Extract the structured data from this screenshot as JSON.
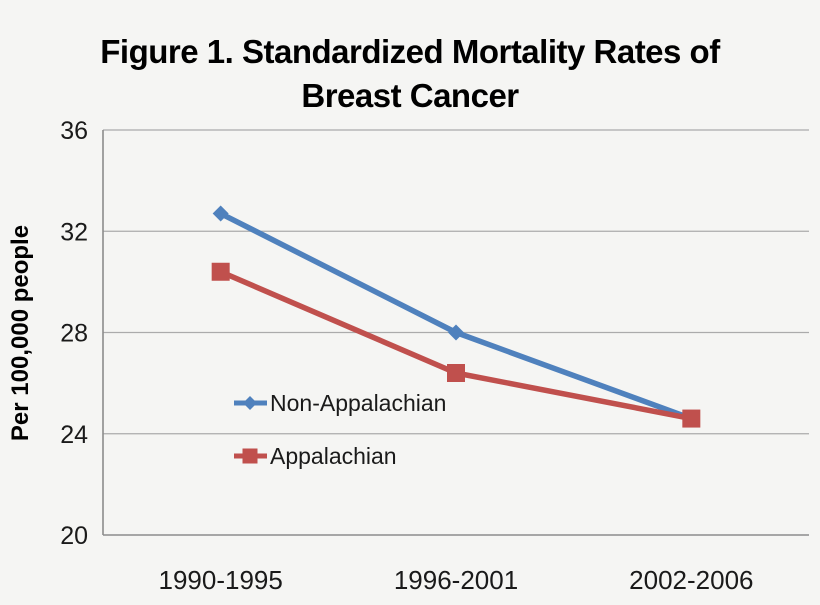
{
  "figure": {
    "title_line1": "Figure 1. Standardized Mortality Rates of",
    "title_line2": "Breast Cancer"
  },
  "chart_data": {
    "type": "line",
    "title": "Figure 1. Standardized Mortality Rates of Breast Cancer",
    "categories": [
      "1990-1995",
      "1996-2001",
      "2002-2006"
    ],
    "series": [
      {
        "name": "Non-Appalachian",
        "values": [
          32.7,
          28.0,
          24.6
        ],
        "color": "#4F81BD",
        "marker": "diamond"
      },
      {
        "name": "Appalachian",
        "values": [
          30.4,
          26.4,
          24.6
        ],
        "color": "#C0504D",
        "marker": "square"
      }
    ],
    "xlabel": "",
    "ylabel": "Per 100,000 people",
    "ylim": [
      20,
      36
    ],
    "yticks": [
      36,
      32,
      28,
      24,
      20
    ],
    "ytick_step": 4,
    "grid": true,
    "legend_position": "inside-lower-left",
    "style": {
      "background": "#F5F5F3",
      "grid_color": "#ABABAB",
      "axis_color": "#8C8C8C",
      "text_color": "#1A1A1A"
    }
  }
}
